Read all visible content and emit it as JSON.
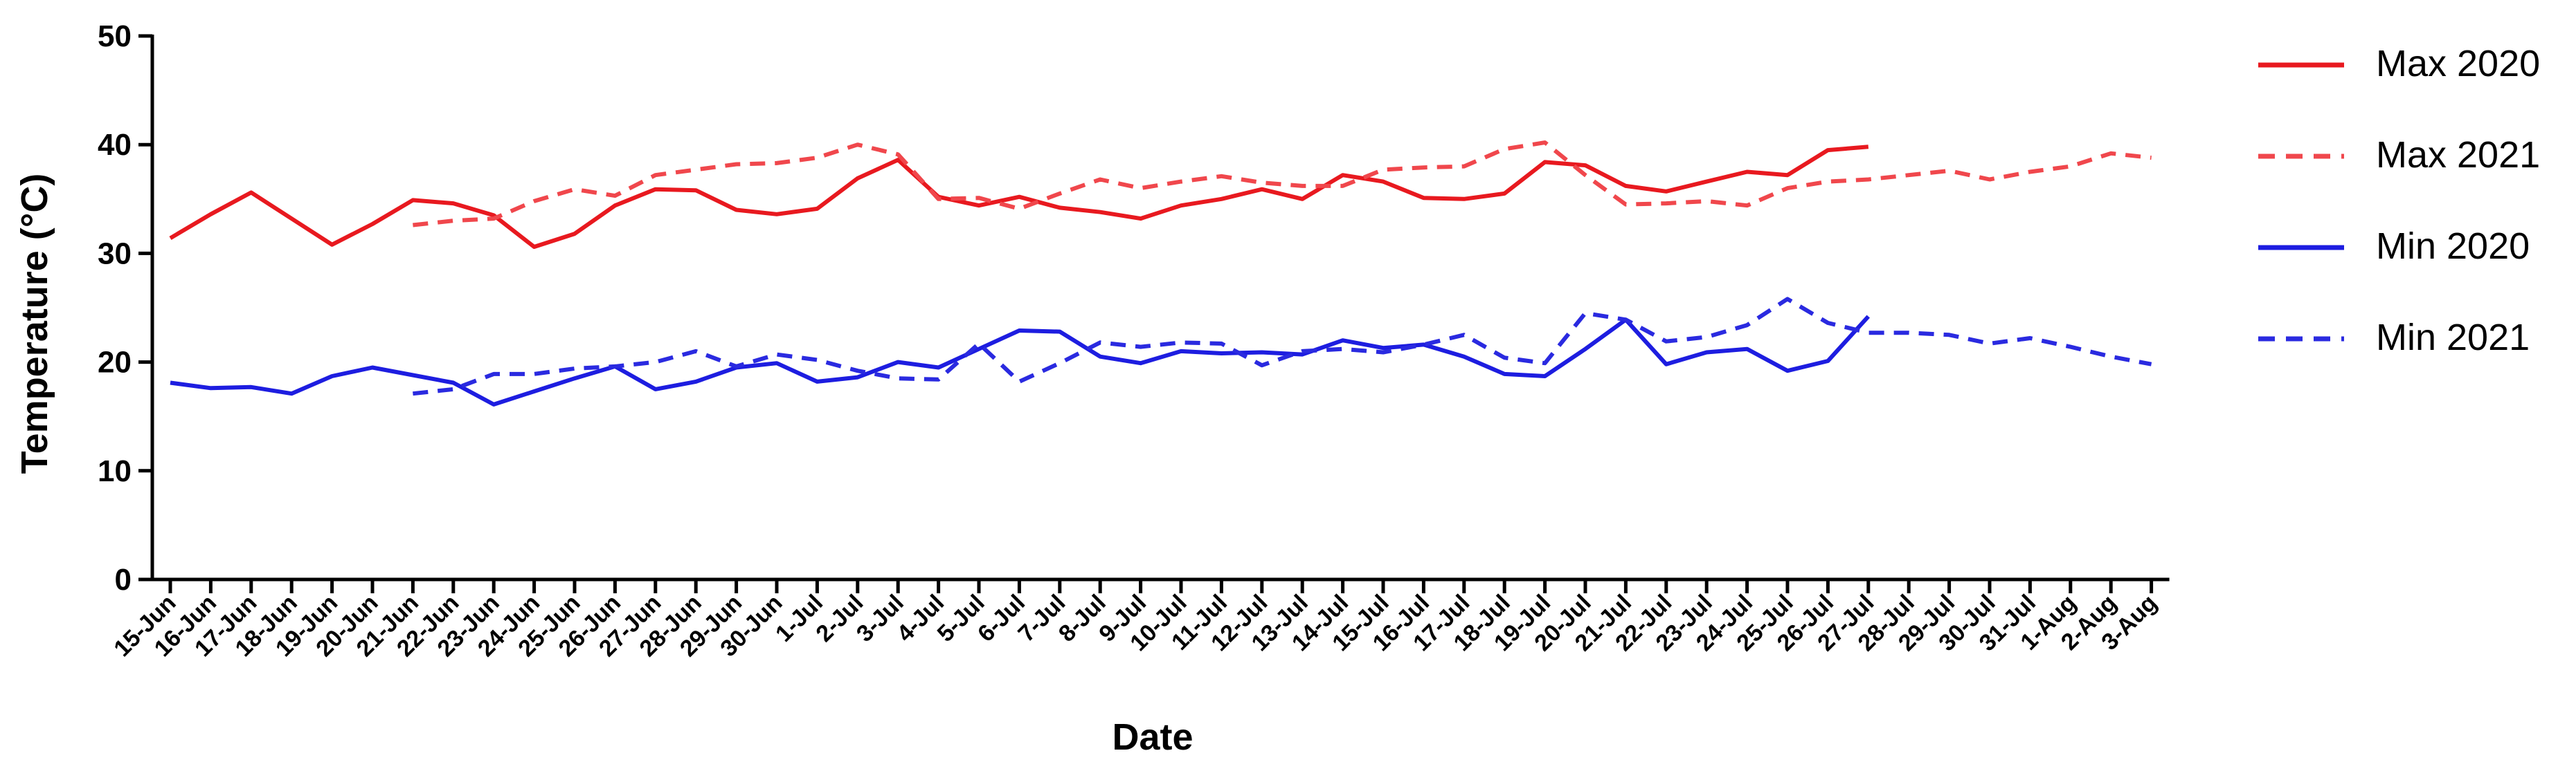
{
  "chart_data": {
    "type": "line",
    "xlabel": "Date",
    "ylabel": "Temperature (°C)",
    "ylim": [
      0,
      50
    ],
    "yticks": [
      0,
      10,
      20,
      30,
      40,
      50
    ],
    "grid": false,
    "legend_position": "right",
    "categories": [
      "15-Jun",
      "16-Jun",
      "17-Jun",
      "18-Jun",
      "19-Jun",
      "20-Jun",
      "21-Jun",
      "22-Jun",
      "23-Jun",
      "24-Jun",
      "25-Jun",
      "26-Jun",
      "27-Jun",
      "28-Jun",
      "29-Jun",
      "30-Jun",
      "1-Jul",
      "2-Jul",
      "3-Jul",
      "4-Jul",
      "5-Jul",
      "6-Jul",
      "7-Jul",
      "8-Jul",
      "9-Jul",
      "10-Jul",
      "11-Jul",
      "12-Jul",
      "13-Jul",
      "14-Jul",
      "15-Jul",
      "16-Jul",
      "17-Jul",
      "18-Jul",
      "19-Jul",
      "20-Jul",
      "21-Jul",
      "22-Jul",
      "23-Jul",
      "24-Jul",
      "25-Jul",
      "26-Jul",
      "27-Jul",
      "28-Jul",
      "29-Jul",
      "30-Jul",
      "31-Jul",
      "1-Aug",
      "2-Aug",
      "3-Aug"
    ],
    "series": [
      {
        "name": "Max 2020",
        "color": "#e8191f",
        "dash": "solid",
        "values": [
          31.4,
          33.6,
          35.6,
          33.2,
          30.8,
          32.7,
          34.9,
          34.6,
          33.5,
          30.6,
          31.8,
          34.4,
          35.9,
          35.8,
          34.0,
          33.6,
          34.1,
          36.9,
          38.6,
          35.2,
          34.4,
          35.2,
          34.2,
          33.8,
          33.2,
          34.4,
          35.0,
          35.9,
          35.0,
          37.2,
          36.6,
          35.1,
          35.0,
          35.5,
          38.4,
          38.1,
          36.2,
          35.7,
          36.6,
          37.5,
          37.2,
          39.5,
          39.8,
          null,
          null,
          null,
          null,
          null,
          null,
          null
        ]
      },
      {
        "name": "Max 2021",
        "color": "#f0474c",
        "dash": "dashed",
        "values": [
          null,
          null,
          null,
          null,
          null,
          null,
          32.6,
          33.0,
          33.2,
          34.8,
          35.9,
          35.3,
          37.2,
          37.7,
          38.2,
          38.3,
          38.8,
          40.0,
          39.1,
          35.0,
          35.1,
          34.1,
          35.5,
          36.8,
          36.0,
          36.6,
          37.1,
          36.5,
          36.2,
          36.2,
          37.7,
          37.9,
          38.0,
          39.6,
          40.2,
          37.2,
          34.5,
          34.6,
          34.8,
          34.4,
          36.0,
          36.6,
          36.8,
          37.2,
          37.6,
          36.8,
          37.5,
          38.0,
          39.2,
          38.8
        ]
      },
      {
        "name": "Min 2020",
        "color": "#1d1de0",
        "dash": "solid",
        "values": [
          18.1,
          17.6,
          17.7,
          17.1,
          18.7,
          19.5,
          18.8,
          18.1,
          16.1,
          17.3,
          18.5,
          19.6,
          17.5,
          18.2,
          19.5,
          19.9,
          18.2,
          18.6,
          20.0,
          19.5,
          21.2,
          22.9,
          22.8,
          20.5,
          19.9,
          21.0,
          20.8,
          20.9,
          20.7,
          22.0,
          21.3,
          21.6,
          20.5,
          18.9,
          18.7,
          21.2,
          23.9,
          19.8,
          20.9,
          21.2,
          19.2,
          20.1,
          24.2,
          null,
          null,
          null,
          null,
          null,
          null,
          null
        ]
      },
      {
        "name": "Min 2021",
        "color": "#2a2ae0",
        "dash": "dashed",
        "values": [
          null,
          null,
          null,
          null,
          null,
          null,
          17.1,
          17.5,
          18.9,
          18.9,
          19.4,
          19.6,
          20.0,
          21.0,
          19.6,
          20.7,
          20.2,
          19.2,
          18.5,
          18.4,
          21.7,
          18.2,
          19.9,
          21.8,
          21.4,
          21.8,
          21.7,
          19.7,
          21.0,
          21.2,
          20.9,
          21.6,
          22.5,
          20.4,
          19.9,
          24.5,
          23.9,
          21.9,
          22.3,
          23.4,
          25.8,
          23.6,
          22.7,
          22.7,
          22.5,
          21.7,
          22.2,
          21.4,
          20.5,
          19.8
        ]
      }
    ]
  }
}
